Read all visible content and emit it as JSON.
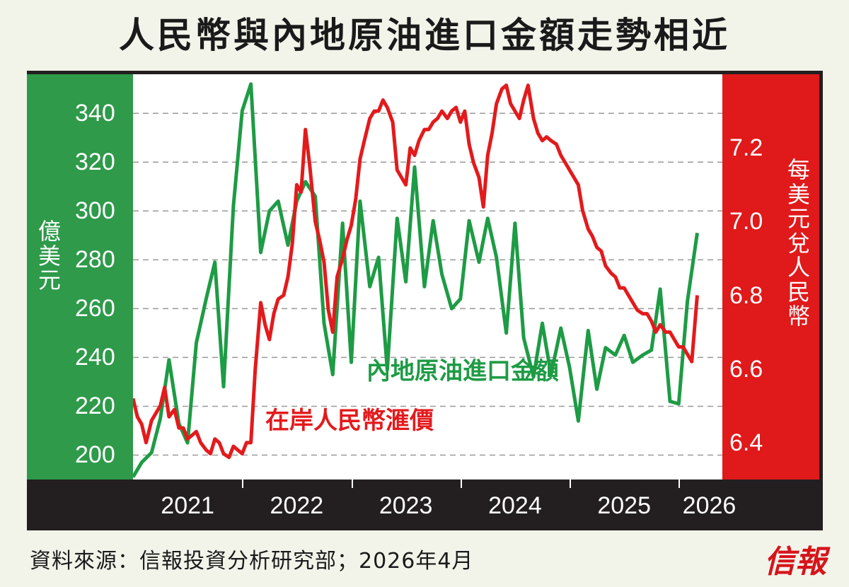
{
  "title": "人民幣與內地原油進口金額走勢相近",
  "source": "資料來源：信報投資分析研究部；2026年4月",
  "logo": "信報",
  "chart_data": {
    "type": "line",
    "left_axis": {
      "label": "億美元",
      "ticks": [
        "200",
        "220",
        "240",
        "260",
        "280",
        "300",
        "320",
        "340"
      ],
      "range": [
        190,
        356
      ]
    },
    "right_axis": {
      "label": "每美元兌人民幣",
      "ticks": [
        "6.4",
        "6.6",
        "6.8",
        "7.0",
        "7.2"
      ],
      "range": [
        6.3,
        7.4
      ]
    },
    "x_ticks": [
      "2021",
      "2022",
      "2023",
      "2024",
      "2025",
      "2026"
    ],
    "x_range": [
      2021.0,
      2026.4
    ],
    "colors": {
      "green": "#1e9b45",
      "red": "#e31a1c"
    },
    "series": [
      {
        "name": "內地原油進口金額",
        "axis": "left",
        "color": "#1e9b45",
        "x": [
          2021.0,
          2021.08,
          2021.17,
          2021.25,
          2021.33,
          2021.42,
          2021.5,
          2021.58,
          2021.67,
          2021.75,
          2021.83,
          2021.92,
          2022.0,
          2022.08,
          2022.17,
          2022.25,
          2022.33,
          2022.42,
          2022.5,
          2022.58,
          2022.67,
          2022.75,
          2022.83,
          2022.92,
          2023.0,
          2023.08,
          2023.17,
          2023.25,
          2023.33,
          2023.42,
          2023.5,
          2023.58,
          2023.67,
          2023.75,
          2023.83,
          2023.92,
          2024.0,
          2024.08,
          2024.17,
          2024.25,
          2024.33,
          2024.42,
          2024.5,
          2024.58,
          2024.67,
          2024.75,
          2024.83,
          2024.92,
          2025.0,
          2025.08,
          2025.17,
          2025.25,
          2025.33,
          2025.42,
          2025.5,
          2025.58,
          2025.67,
          2025.75,
          2025.83,
          2025.92,
          2026.0,
          2026.08,
          2026.17
        ],
        "values": [
          191,
          197,
          201,
          215,
          239,
          213,
          205,
          246,
          264,
          279,
          228,
          302,
          341,
          352,
          283,
          300,
          304,
          286,
          304,
          312,
          306,
          254,
          233,
          295,
          238,
          304,
          269,
          281,
          235,
          297,
          271,
          318,
          269,
          296,
          274,
          260,
          264,
          296,
          279,
          297,
          281,
          250,
          295,
          248,
          232,
          254,
          233,
          252,
          236,
          214,
          251,
          227,
          244,
          241,
          249,
          238,
          241,
          243,
          268,
          222,
          221,
          263,
          291
        ]
      },
      {
        "name": "在岸人民幣滙價",
        "axis": "right",
        "color": "#e31a1c",
        "x": [
          2021.0,
          2021.04,
          2021.08,
          2021.12,
          2021.17,
          2021.21,
          2021.25,
          2021.29,
          2021.33,
          2021.38,
          2021.42,
          2021.46,
          2021.5,
          2021.54,
          2021.58,
          2021.62,
          2021.67,
          2021.71,
          2021.75,
          2021.79,
          2021.83,
          2021.88,
          2021.92,
          2021.96,
          2022.0,
          2022.04,
          2022.08,
          2022.12,
          2022.17,
          2022.21,
          2022.25,
          2022.29,
          2022.33,
          2022.38,
          2022.42,
          2022.46,
          2022.5,
          2022.54,
          2022.58,
          2022.62,
          2022.67,
          2022.71,
          2022.75,
          2022.79,
          2022.83,
          2022.87,
          2022.92,
          2022.96,
          2023.0,
          2023.04,
          2023.08,
          2023.12,
          2023.17,
          2023.21,
          2023.25,
          2023.29,
          2023.33,
          2023.38,
          2023.42,
          2023.46,
          2023.5,
          2023.54,
          2023.58,
          2023.62,
          2023.67,
          2023.71,
          2023.75,
          2023.79,
          2023.83,
          2023.88,
          2023.92,
          2023.96,
          2024.0,
          2024.04,
          2024.08,
          2024.12,
          2024.17,
          2024.21,
          2024.25,
          2024.29,
          2024.33,
          2024.38,
          2024.42,
          2024.46,
          2024.5,
          2024.54,
          2024.58,
          2024.62,
          2024.67,
          2024.71,
          2024.75,
          2024.79,
          2024.83,
          2024.88,
          2024.92,
          2024.96,
          2025.0,
          2025.04,
          2025.08,
          2025.12,
          2025.17,
          2025.21,
          2025.25,
          2025.29,
          2025.33,
          2025.38,
          2025.42,
          2025.46,
          2025.5,
          2025.54,
          2025.58,
          2025.62,
          2025.67,
          2025.71,
          2025.75,
          2025.79,
          2025.83,
          2025.88,
          2025.92,
          2025.96,
          2026.0,
          2026.04,
          2026.08,
          2026.12,
          2026.17
        ],
        "values": [
          6.52,
          6.47,
          6.45,
          6.4,
          6.46,
          6.48,
          6.5,
          6.55,
          6.47,
          6.49,
          6.44,
          6.44,
          6.41,
          6.42,
          6.43,
          6.4,
          6.38,
          6.37,
          6.41,
          6.4,
          6.37,
          6.36,
          6.39,
          6.38,
          6.37,
          6.4,
          6.4,
          6.6,
          6.78,
          6.72,
          6.68,
          6.75,
          6.79,
          6.8,
          6.85,
          6.94,
          7.1,
          7.08,
          7.25,
          7.15,
          7.0,
          6.95,
          6.89,
          6.76,
          6.7,
          6.85,
          6.9,
          6.95,
          6.99,
          7.06,
          7.17,
          7.22,
          7.28,
          7.3,
          7.3,
          7.33,
          7.31,
          7.27,
          7.14,
          7.12,
          7.1,
          7.2,
          7.18,
          7.22,
          7.25,
          7.25,
          7.27,
          7.28,
          7.3,
          7.28,
          7.3,
          7.31,
          7.27,
          7.3,
          7.21,
          7.16,
          7.12,
          7.04,
          7.18,
          7.24,
          7.32,
          7.36,
          7.37,
          7.32,
          7.3,
          7.28,
          7.33,
          7.37,
          7.28,
          7.24,
          7.22,
          7.23,
          7.22,
          7.21,
          7.18,
          7.16,
          7.14,
          7.12,
          7.1,
          7.03,
          6.98,
          6.96,
          6.93,
          6.92,
          6.88,
          6.86,
          6.85,
          6.82,
          6.82,
          6.8,
          6.78,
          6.76,
          6.75,
          6.75,
          6.73,
          6.7,
          6.72,
          6.7,
          6.7,
          6.68,
          6.66,
          6.66,
          6.64,
          6.62,
          6.8
        ]
      }
    ]
  }
}
